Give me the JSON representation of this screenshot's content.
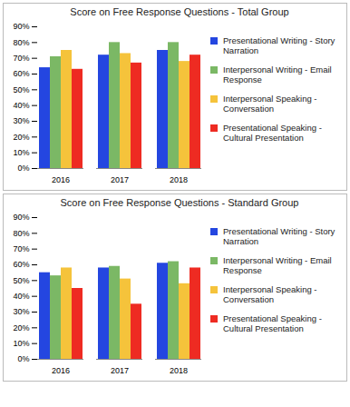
{
  "chart_data": [
    {
      "type": "bar",
      "title": "Score on Free Response Questions - Total Group",
      "categories": [
        "2016",
        "2017",
        "2018"
      ],
      "series": [
        {
          "name": "Presentational Writing - Story Narration",
          "color": "#2446e0",
          "values": [
            64,
            72,
            75
          ]
        },
        {
          "name": "Interpersonal Writing - Email Response",
          "color": "#7bb865",
          "values": [
            71,
            80,
            80
          ]
        },
        {
          "name": "Interpersonal Speaking - Conversation",
          "color": "#f5c33b",
          "values": [
            75,
            73,
            68
          ]
        },
        {
          "name": "Presentational Speaking - Cultural Presentation",
          "color": "#ee2b22",
          "values": [
            63,
            67,
            72
          ]
        }
      ],
      "ylim": [
        0,
        90
      ],
      "yticks": [
        {
          "value": 0,
          "label": "0%"
        },
        {
          "value": 10,
          "label": "10%"
        },
        {
          "value": 20,
          "label": "20%"
        },
        {
          "value": 30,
          "label": "30%"
        },
        {
          "value": 40,
          "label": "40%"
        },
        {
          "value": 50,
          "label": "50%"
        },
        {
          "value": 60,
          "label": "60%"
        },
        {
          "value": 70,
          "label": "70%"
        },
        {
          "value": 80,
          "label": "80%"
        },
        {
          "value": 90,
          "label": "90%"
        }
      ],
      "grid": false,
      "legend": "right"
    },
    {
      "type": "bar",
      "title": "Score on Free Response Questions - Standard Group",
      "categories": [
        "2016",
        "2017",
        "2018"
      ],
      "series": [
        {
          "name": "Presentational Writing - Story Narration",
          "color": "#2446e0",
          "values": [
            55,
            58,
            61
          ]
        },
        {
          "name": "Interpersonal Writing - Email Response",
          "color": "#7bb865",
          "values": [
            53,
            59,
            62
          ]
        },
        {
          "name": "Interpersonal Speaking - Conversation",
          "color": "#f5c33b",
          "values": [
            58,
            51,
            48
          ]
        },
        {
          "name": "Presentational Speaking - Cultural Presentation",
          "color": "#ee2b22",
          "values": [
            45,
            35,
            58
          ]
        }
      ],
      "ylim": [
        0,
        90
      ],
      "yticks": [
        {
          "value": 0,
          "label": "0%"
        },
        {
          "value": 10,
          "label": "10%"
        },
        {
          "value": 20,
          "label": "20%"
        },
        {
          "value": 30,
          "label": "30%"
        },
        {
          "value": 40,
          "label": "40%"
        },
        {
          "value": 50,
          "label": "50%"
        },
        {
          "value": 60,
          "label": "60%"
        },
        {
          "value": 70,
          "label": "70%"
        },
        {
          "value": 80,
          "label": "80%"
        },
        {
          "value": 90,
          "label": "90%"
        }
      ],
      "grid": false,
      "legend": "right"
    }
  ]
}
